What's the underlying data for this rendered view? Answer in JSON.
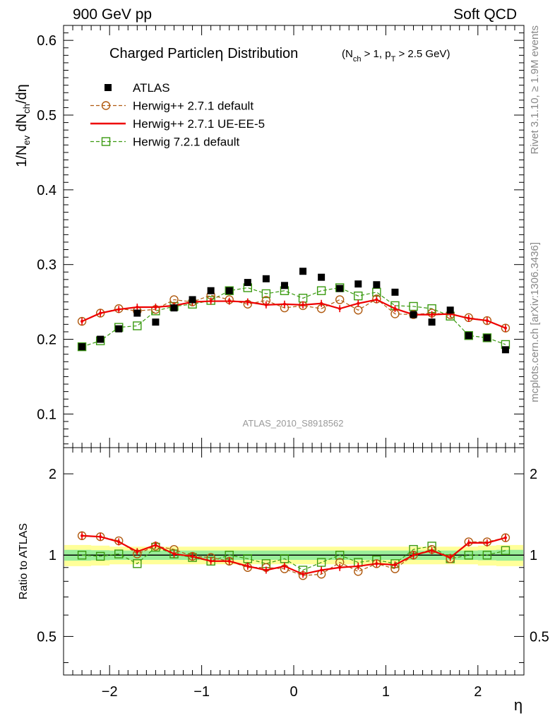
{
  "header": {
    "left": "900 GeV pp",
    "right": "Soft QCD"
  },
  "side_text": {
    "rivet": "Rivet 3.1.10, ≥ 1.9M events",
    "source": "mcplots.cern.ch [arXiv:1306.3436]"
  },
  "chart_data": [
    {
      "type": "scatter",
      "title_main": "Charged Particle",
      "title_eta": "η",
      "title_tail": " Distribution",
      "title_cuts": "(N_ch > 1, p_T > 2.5 GeV)",
      "ylabel": "1/N_ev dN_ch/dη",
      "watermark": "ATLAS_2010_S8918562",
      "xlim": [
        -2.5,
        2.5
      ],
      "ylim": [
        0.055,
        0.62
      ],
      "yticks": [
        0.1,
        0.2,
        0.3,
        0.4,
        0.5,
        0.6
      ],
      "ytick_labels": [
        "0.1",
        "0.2",
        "0.3",
        "0.4",
        "0.5",
        "0.6"
      ],
      "legend_position": "top-left",
      "x": [
        -2.3,
        -2.1,
        -1.9,
        -1.7,
        -1.5,
        -1.3,
        -1.1,
        -0.9,
        -0.7,
        -0.5,
        -0.3,
        -0.1,
        0.1,
        0.3,
        0.5,
        0.7,
        0.9,
        1.1,
        1.3,
        1.5,
        1.7,
        1.9,
        2.1,
        2.3
      ],
      "series": [
        {
          "name": "ATLAS",
          "color": "#000000",
          "marker": "filled-square",
          "line": "none",
          "values": [
            0.19,
            0.2,
            0.214,
            0.235,
            0.223,
            0.242,
            0.253,
            0.265,
            0.265,
            0.276,
            0.281,
            0.272,
            0.291,
            0.283,
            0.268,
            0.274,
            0.273,
            0.263,
            0.233,
            0.223,
            0.239,
            0.205,
            0.202,
            0.186
          ]
        },
        {
          "name": "Herwig++ 2.7.1 default",
          "color": "#b05a10",
          "marker": "open-circle",
          "line": "dashed",
          "values": [
            0.224,
            0.235,
            0.241,
            0.238,
            0.24,
            0.253,
            0.25,
            0.259,
            0.253,
            0.247,
            0.252,
            0.242,
            0.245,
            0.241,
            0.253,
            0.239,
            0.254,
            0.234,
            0.233,
            0.235,
            0.233,
            0.229,
            0.225,
            0.215
          ]
        },
        {
          "name": "Herwig++ 2.7.1 UE-EE-5",
          "color": "#ee0000",
          "marker": "none",
          "line": "solid",
          "values": [
            0.224,
            0.235,
            0.24,
            0.243,
            0.243,
            0.245,
            0.25,
            0.251,
            0.251,
            0.25,
            0.246,
            0.247,
            0.246,
            0.248,
            0.241,
            0.248,
            0.253,
            0.241,
            0.233,
            0.233,
            0.234,
            0.228,
            0.225,
            0.215
          ]
        },
        {
          "name": "Herwig 7.2.1 default",
          "color": "#3a9a10",
          "marker": "open-square",
          "line": "dashed",
          "values": [
            0.19,
            0.198,
            0.216,
            0.218,
            0.238,
            0.244,
            0.247,
            0.252,
            0.265,
            0.269,
            0.261,
            0.265,
            0.255,
            0.265,
            0.269,
            0.258,
            0.263,
            0.245,
            0.244,
            0.241,
            0.231,
            0.205,
            0.202,
            0.193
          ]
        }
      ]
    },
    {
      "type": "scatter",
      "ylabel": "Ratio to ATLAS",
      "xlabel": "η",
      "xlim": [
        -2.5,
        2.5
      ],
      "ylim": [
        0.36,
        2.5
      ],
      "log_y": true,
      "xticks": [
        -2,
        -1,
        0,
        1,
        2
      ],
      "xtick_labels": [
        "−2",
        "−1",
        "0",
        "1",
        "2"
      ],
      "yticks": [
        0.5,
        1,
        2
      ],
      "ytick_labels": [
        "0.5",
        "1",
        "2"
      ],
      "x": [
        -2.3,
        -2.1,
        -1.9,
        -1.7,
        -1.5,
        -1.3,
        -1.1,
        -0.9,
        -0.7,
        -0.5,
        -0.3,
        -0.1,
        0.1,
        0.3,
        0.5,
        0.7,
        0.9,
        1.1,
        1.3,
        1.5,
        1.7,
        1.9,
        2.1,
        2.3
      ],
      "band_inner": [
        0.046,
        0.043,
        0.04,
        0.04,
        0.04,
        0.04,
        0.04,
        0.04,
        0.04,
        0.04,
        0.04,
        0.04,
        0.04,
        0.04,
        0.04,
        0.04,
        0.04,
        0.04,
        0.04,
        0.04,
        0.04,
        0.04,
        0.043,
        0.046
      ],
      "band_outer": [
        0.09,
        0.085,
        0.075,
        0.075,
        0.075,
        0.075,
        0.075,
        0.075,
        0.075,
        0.075,
        0.075,
        0.075,
        0.075,
        0.075,
        0.075,
        0.075,
        0.075,
        0.075,
        0.075,
        0.075,
        0.075,
        0.075,
        0.085,
        0.09
      ],
      "series": [
        {
          "name": "Herwig++ 2.7.1 default",
          "color": "#b05a10",
          "marker": "open-circle",
          "line": "dashed",
          "values": [
            1.18,
            1.17,
            1.13,
            1.01,
            1.08,
            1.05,
            0.99,
            0.98,
            0.95,
            0.9,
            0.9,
            0.89,
            0.84,
            0.85,
            0.94,
            0.87,
            0.93,
            0.89,
            1.0,
            1.05,
            0.97,
            1.12,
            1.12,
            1.16
          ]
        },
        {
          "name": "Herwig++ 2.7.1 UE-EE-5",
          "color": "#ee0000",
          "marker": "none",
          "line": "solid",
          "values": [
            1.18,
            1.17,
            1.12,
            1.03,
            1.09,
            1.01,
            0.99,
            0.95,
            0.95,
            0.91,
            0.88,
            0.91,
            0.85,
            0.88,
            0.9,
            0.91,
            0.93,
            0.92,
            1.0,
            1.04,
            0.98,
            1.11,
            1.11,
            1.16
          ]
        },
        {
          "name": "Herwig 7.2.1 default",
          "color": "#3a9a10",
          "marker": "open-square",
          "line": "dashed",
          "values": [
            1.0,
            0.99,
            1.01,
            0.93,
            1.07,
            1.01,
            0.98,
            0.95,
            1.0,
            0.97,
            0.93,
            0.97,
            0.88,
            0.94,
            1.0,
            0.94,
            0.96,
            0.93,
            1.05,
            1.08,
            0.97,
            1.0,
            1.0,
            1.04
          ]
        }
      ]
    }
  ]
}
